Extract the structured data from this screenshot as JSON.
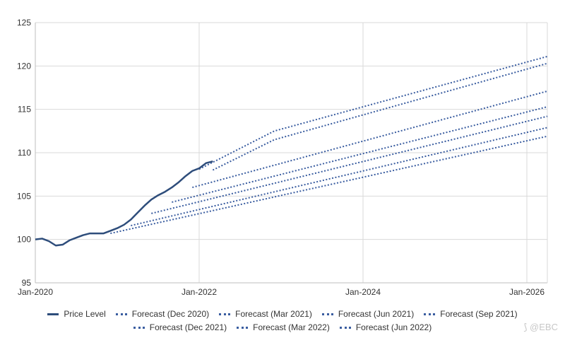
{
  "chart_data": {
    "type": "line",
    "title": "",
    "xlabel": "",
    "ylabel": "",
    "ylim": [
      95,
      125
    ],
    "yticks": [
      95,
      100,
      105,
      110,
      115,
      120,
      125
    ],
    "xticks": [
      {
        "label": "Jan-2020",
        "t": 2020.0
      },
      {
        "label": "Jan-2022",
        "t": 2022.0
      },
      {
        "label": "Jan-2024",
        "t": 2024.0
      },
      {
        "label": "Jan-2026",
        "t": 2026.0
      }
    ],
    "grid": true,
    "legend_position": "bottom",
    "series": [
      {
        "name": "Price Level",
        "style": "solid",
        "color": "#2e4d7b",
        "points": [
          [
            "Jan-2020",
            100.0
          ],
          [
            "Feb-2020",
            100.1
          ],
          [
            "Mar-2020",
            99.8
          ],
          [
            "Apr-2020",
            99.3
          ],
          [
            "May-2020",
            99.4
          ],
          [
            "Jun-2020",
            99.9
          ],
          [
            "Jul-2020",
            100.2
          ],
          [
            "Aug-2020",
            100.5
          ],
          [
            "Sep-2020",
            100.7
          ],
          [
            "Oct-2020",
            100.7
          ],
          [
            "Nov-2020",
            100.7
          ],
          [
            "Dec-2020",
            101.0
          ],
          [
            "Jan-2021",
            101.3
          ],
          [
            "Feb-2021",
            101.7
          ],
          [
            "Mar-2021",
            102.3
          ],
          [
            "Apr-2021",
            103.1
          ],
          [
            "May-2021",
            103.9
          ],
          [
            "Jun-2021",
            104.6
          ],
          [
            "Jul-2021",
            105.1
          ],
          [
            "Aug-2021",
            105.5
          ],
          [
            "Sep-2021",
            106.0
          ],
          [
            "Oct-2021",
            106.6
          ],
          [
            "Nov-2021",
            107.3
          ],
          [
            "Dec-2021",
            107.9
          ],
          [
            "Jan-2022",
            108.2
          ],
          [
            "Feb-2022",
            108.8
          ],
          [
            "Mar-2022",
            109.0
          ]
        ]
      },
      {
        "name": "Forecast (Dec 2020)",
        "style": "dotted",
        "color": "#3a5da0",
        "points": [
          [
            "Dec-2020",
            100.7
          ],
          [
            "Apr-2026",
            111.9
          ]
        ]
      },
      {
        "name": "Forecast (Mar 2021)",
        "style": "dotted",
        "color": "#3a5da0",
        "points": [
          [
            "Mar-2021",
            101.6
          ],
          [
            "Apr-2026",
            112.9
          ]
        ]
      },
      {
        "name": "Forecast (Jun 2021)",
        "style": "dotted",
        "color": "#3a5da0",
        "points": [
          [
            "Jun-2021",
            103.0
          ],
          [
            "Apr-2026",
            114.2
          ]
        ]
      },
      {
        "name": "Forecast (Sep 2021)",
        "style": "dotted",
        "color": "#3a5da0",
        "points": [
          [
            "Sep-2021",
            104.3
          ],
          [
            "Apr-2026",
            115.3
          ]
        ]
      },
      {
        "name": "Forecast (Dec 2021)",
        "style": "dotted",
        "color": "#3a5da0",
        "points": [
          [
            "Dec-2021",
            106.0
          ],
          [
            "Apr-2026",
            117.1
          ]
        ]
      },
      {
        "name": "Forecast (Mar 2022)",
        "style": "dotted",
        "color": "#3a5da0",
        "points": [
          [
            "Mar-2022",
            108.0
          ],
          [
            "Dec-2022",
            111.5
          ],
          [
            "Apr-2026",
            120.3
          ]
        ]
      },
      {
        "name": "Forecast (Jun 2022)",
        "style": "dotted",
        "color": "#3a5da0",
        "points": [
          [
            "Jan-2022",
            108.1
          ],
          [
            "Dec-2022",
            112.5
          ],
          [
            "Apr-2026",
            121.1
          ]
        ]
      }
    ]
  },
  "legend": {
    "row1": [
      "Price Level",
      "Forecast (Dec 2020)",
      "Forecast (Mar 2021)",
      "Forecast (Jun 2021)",
      "Forecast (Sep 2021)"
    ],
    "row2": [
      "Forecast (Dec 2021)",
      "Forecast (Mar 2022)",
      "Forecast (Jun 2022)"
    ]
  },
  "watermark": "⟆ @EBC"
}
